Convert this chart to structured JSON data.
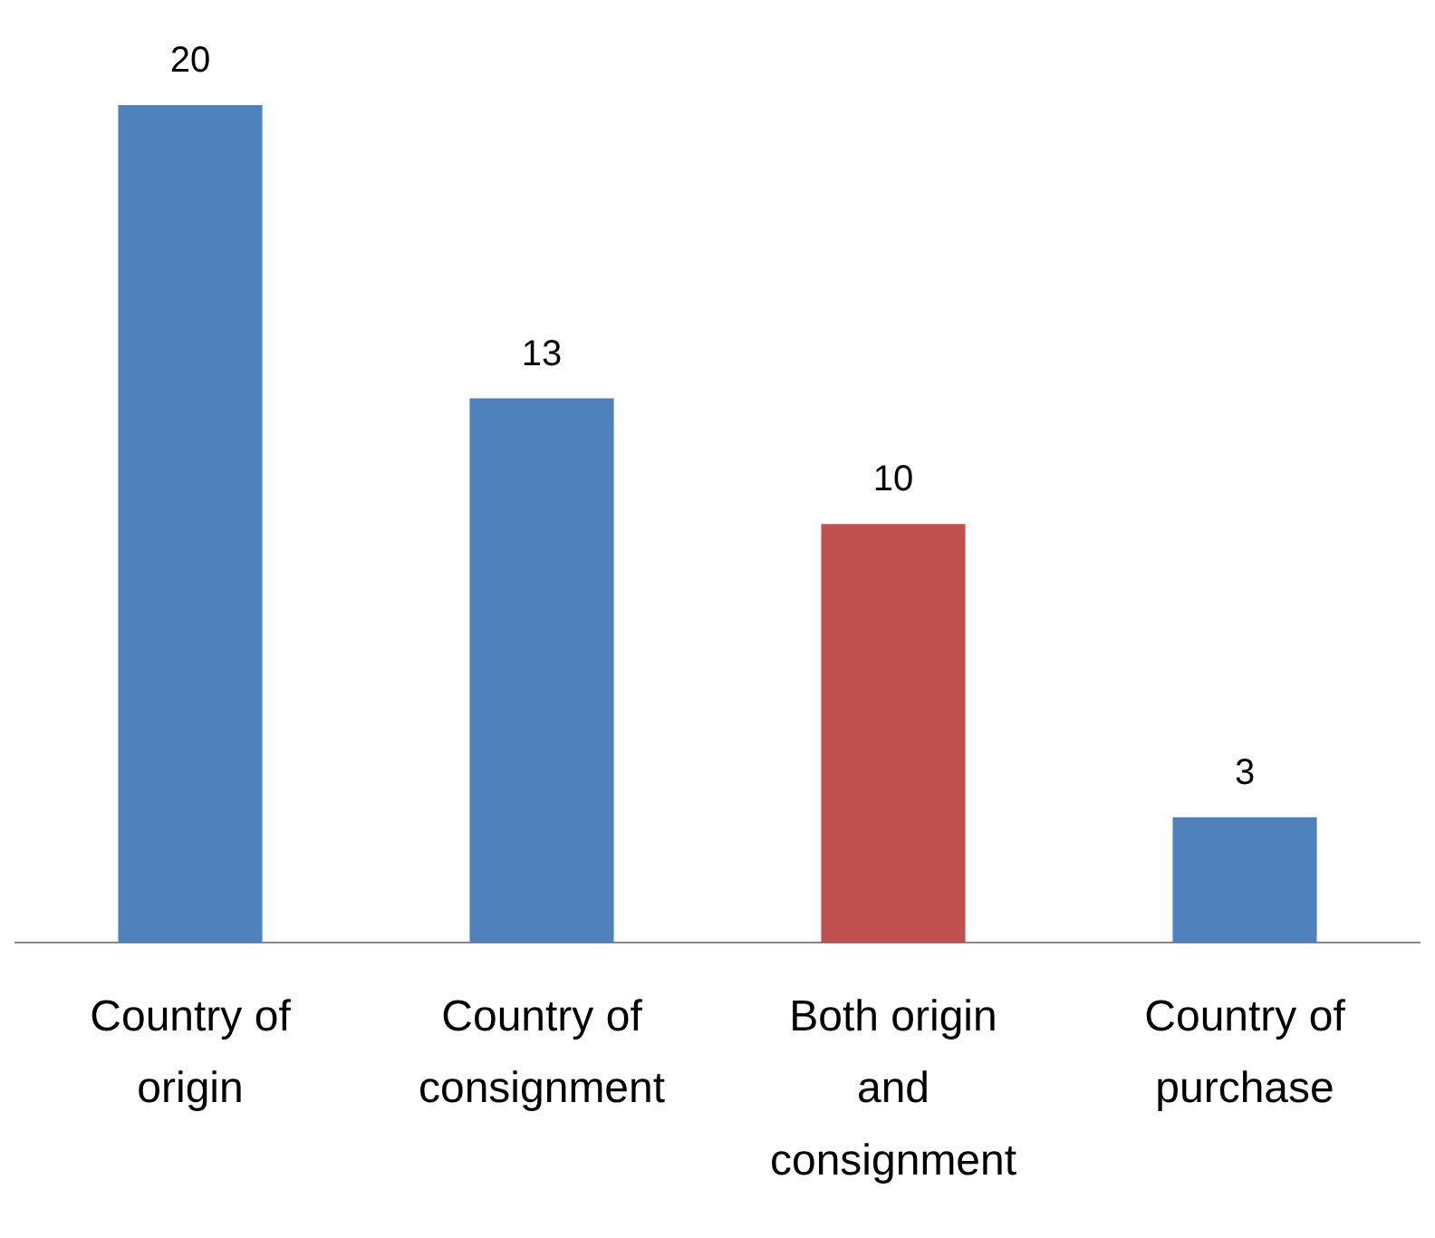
{
  "chart_data": {
    "type": "bar",
    "categories": [
      "Country of origin",
      "Country of consignment",
      "Both origin and consignment",
      "Country of purchase"
    ],
    "values": [
      20,
      13,
      10,
      3
    ],
    "colors": [
      "#4f81bd",
      "#4f81bd",
      "#c0504d",
      "#4f81bd"
    ],
    "data_labels": true,
    "grid": false,
    "legend": false
  }
}
